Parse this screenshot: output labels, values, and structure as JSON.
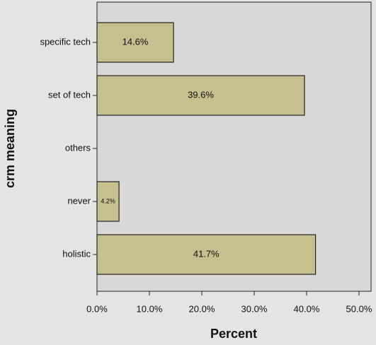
{
  "chart_data": {
    "type": "barh",
    "y_label": "crm meaning",
    "x_label": "Percent",
    "categories": [
      "specific tech",
      "set of tech",
      "others",
      "never",
      "holistic"
    ],
    "values": [
      14.6,
      39.6,
      null,
      4.2,
      41.7
    ],
    "value_labels": [
      "14.6%",
      "39.6%",
      null,
      "4.2%",
      "41.7%"
    ],
    "color": "#c7bf8e",
    "xlim": [
      0,
      52.3
    ],
    "xticks": [
      {
        "value": 0,
        "label": "0.0%"
      },
      {
        "value": 10,
        "label": "10.0%"
      },
      {
        "value": 20,
        "label": "20.0%"
      },
      {
        "value": 30,
        "label": "30.0%"
      },
      {
        "value": 40,
        "label": "40.0%"
      },
      {
        "value": 50,
        "label": "50.0%"
      }
    ]
  }
}
